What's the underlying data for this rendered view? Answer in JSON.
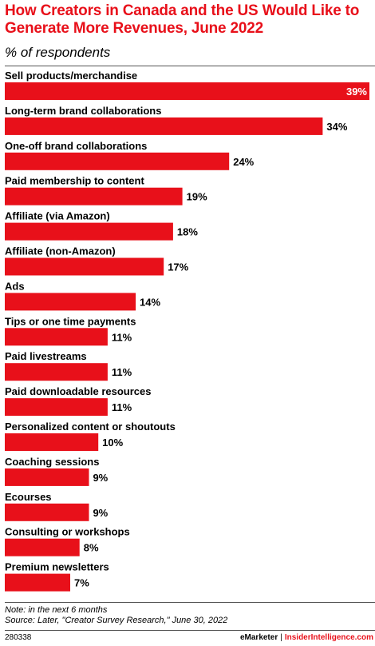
{
  "header": {
    "title": "How Creators in Canada and the US Would Like to Generate More Revenues, June 2022",
    "subtitle": "% of respondents"
  },
  "colors": {
    "bar": "#e8101a",
    "title": "#e8101a",
    "value_inside": "#ffffff",
    "value_outside": "#000000"
  },
  "chart_data": {
    "type": "bar",
    "orientation": "horizontal",
    "categories": [
      "Sell products/merchandise",
      "Long-term brand collaborations",
      "One-off brand collaborations",
      "Paid membership to content",
      "Affiliate (via Amazon)",
      "Affiliate (non-Amazon)",
      "Ads",
      "Tips or one time payments",
      "Paid livestreams",
      "Paid downloadable resources",
      "Personalized content or shoutouts",
      "Coaching sessions",
      "Ecourses",
      "Consulting or workshops",
      "Premium newsletters"
    ],
    "values": [
      39,
      34,
      24,
      19,
      18,
      17,
      14,
      11,
      11,
      11,
      10,
      9,
      9,
      8,
      7
    ],
    "value_labels": [
      "39%",
      "34%",
      "24%",
      "19%",
      "18%",
      "17%",
      "14%",
      "11%",
      "11%",
      "11%",
      "10%",
      "9%",
      "9%",
      "8%",
      "7%"
    ],
    "xlim": [
      0,
      39
    ],
    "grid": false,
    "legend": "none"
  },
  "footer": {
    "note": "Note: in the next 6 months",
    "source": "Source: Later, \"Creator Survey Research,\" June 30, 2022",
    "chart_id": "280338",
    "brand_emarketer": "eMarketer",
    "brand_separator": "|",
    "brand_insider": "InsiderIntelligence.com"
  }
}
